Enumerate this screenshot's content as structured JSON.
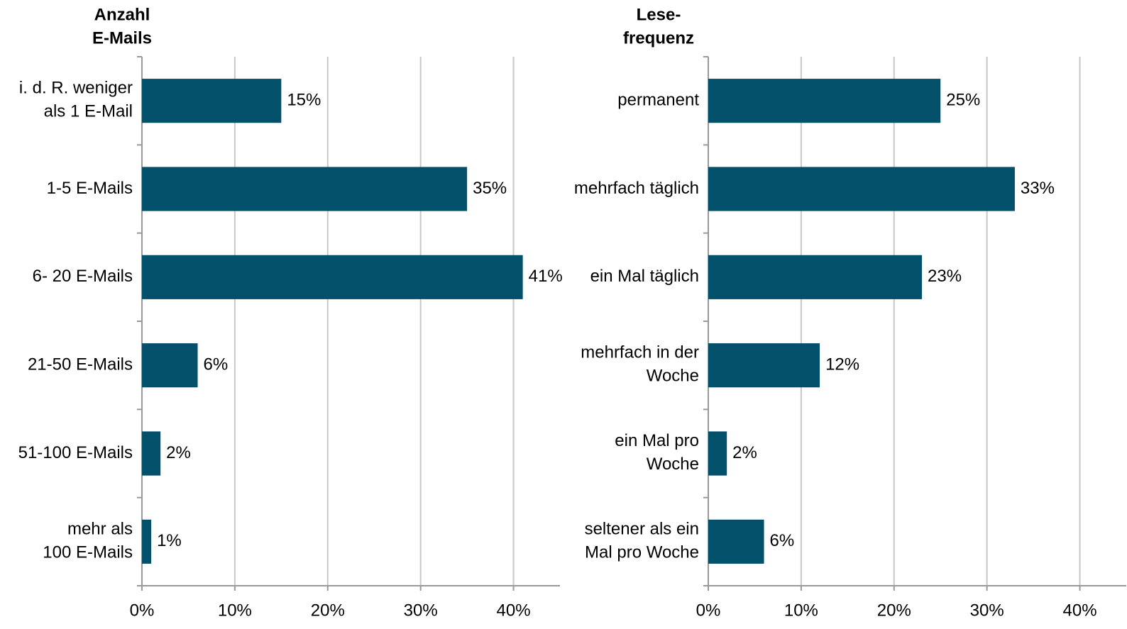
{
  "chart_data": [
    {
      "type": "bar",
      "orientation": "horizontal",
      "title": "Anzahl\nE-Mails",
      "categories": [
        "i. d. R. weniger\nals 1 E-Mail",
        "1-5 E-Mails",
        "6- 20 E-Mails",
        "21-50 E-Mails",
        "51-100 E-Mails",
        "mehr als\n100 E-Mails"
      ],
      "values": [
        15,
        35,
        41,
        6,
        2,
        1
      ],
      "value_labels": [
        "15%",
        "35%",
        "41%",
        "6%",
        "2%",
        "1%"
      ],
      "color": "#03506b",
      "xlim": [
        0,
        45
      ],
      "xticks": [
        {
          "value": 0,
          "label": "0%"
        },
        {
          "value": 10,
          "label": "10%"
        },
        {
          "value": 20,
          "label": "20%"
        },
        {
          "value": 30,
          "label": "30%"
        },
        {
          "value": 40,
          "label": "40%"
        }
      ],
      "grid": true
    },
    {
      "type": "bar",
      "orientation": "horizontal",
      "title": "Lese-\nfrequenz",
      "categories": [
        "permanent",
        "mehrfach täglich",
        "ein Mal täglich",
        "mehrfach in der\nWoche",
        "ein Mal pro\nWoche",
        "seltener als ein\nMal pro Woche"
      ],
      "values": [
        25,
        33,
        23,
        12,
        2,
        6
      ],
      "value_labels": [
        "25%",
        "33%",
        "23%",
        "12%",
        "2%",
        "6%"
      ],
      "color": "#03506b",
      "xlim": [
        0,
        45
      ],
      "xticks": [
        {
          "value": 0,
          "label": "0%"
        },
        {
          "value": 10,
          "label": "10%"
        },
        {
          "value": 20,
          "label": "20%"
        },
        {
          "value": 30,
          "label": "30%"
        },
        {
          "value": 40,
          "label": "40%"
        }
      ],
      "grid": true
    }
  ]
}
